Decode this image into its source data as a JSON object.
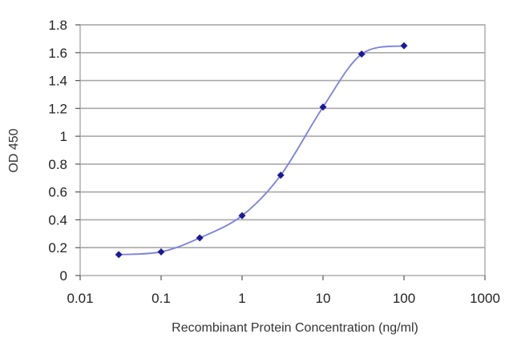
{
  "chart_data": {
    "type": "line",
    "title": "",
    "xlabel": "Recombinant Protein Concentration (ng/ml)",
    "ylabel": "OD 450",
    "x_scale": "log",
    "xlim": [
      0.01,
      1000
    ],
    "ylim": [
      0,
      1.8
    ],
    "x_ticks": [
      0.01,
      0.1,
      1,
      10,
      100,
      1000
    ],
    "x_tick_labels": [
      "0.01",
      "0.1",
      "1",
      "10",
      "100",
      "1000"
    ],
    "y_ticks": [
      0,
      0.2,
      0.4,
      0.6,
      0.8,
      1,
      1.2,
      1.4,
      1.6,
      1.8
    ],
    "y_tick_labels": [
      "0",
      "0.2",
      "0.4",
      "0.6",
      "0.8",
      "1",
      "1.2",
      "1.4",
      "1.6",
      "1.8"
    ],
    "grid": "horizontal",
    "legend": "none",
    "series": [
      {
        "x": [
          0.03,
          0.1,
          0.3,
          1,
          3,
          10,
          30,
          100
        ],
        "y": [
          0.15,
          0.17,
          0.27,
          0.43,
          0.72,
          1.21,
          1.59,
          1.65
        ],
        "line_color": "#7b7fe0",
        "marker_color": "#1a1a99",
        "marker": "diamond"
      }
    ]
  }
}
